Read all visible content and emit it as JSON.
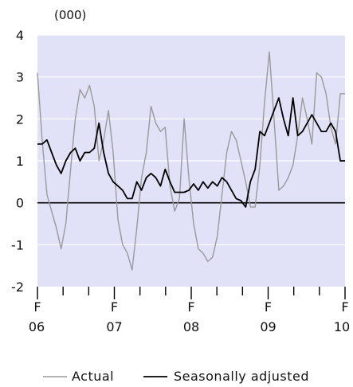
{
  "chart_data": {
    "type": "line",
    "unit_label": "(000)",
    "ylim": [
      -2,
      4
    ],
    "y_ticks": [
      "-2",
      "-1",
      "0",
      "1",
      "2",
      "3",
      "4"
    ],
    "x_ticks": [
      {
        "month": "F",
        "year": "06"
      },
      {
        "month": "F",
        "year": "07"
      },
      {
        "month": "F",
        "year": "08"
      },
      {
        "month": "F",
        "year": "09"
      },
      {
        "month": "F",
        "year": "10"
      }
    ],
    "x_period_start": "Feb 2006",
    "x_period_end": "Feb 2010",
    "grid": true,
    "background_color": "#e1e1f8",
    "zero_line": true,
    "legend_position": "bottom",
    "series": [
      {
        "name": "Actual",
        "color": "#9a9a9a",
        "values": [
          3.1,
          1.5,
          0.2,
          -0.2,
          -0.6,
          -1.1,
          -0.5,
          0.8,
          2.0,
          2.7,
          2.5,
          2.8,
          2.3,
          1.0,
          1.5,
          2.2,
          1.2,
          -0.4,
          -1.0,
          -1.2,
          -1.6,
          -0.6,
          0.6,
          1.2,
          2.3,
          1.9,
          1.7,
          1.8,
          0.4,
          -0.2,
          0.1,
          2.0,
          0.6,
          -0.5,
          -1.1,
          -1.2,
          -1.4,
          -1.3,
          -0.8,
          0.2,
          1.2,
          1.7,
          1.5,
          1.0,
          0.5,
          -0.1,
          -0.1,
          0.9,
          2.4,
          3.6,
          2.0,
          0.3,
          0.4,
          0.6,
          0.9,
          1.6,
          2.5,
          2.0,
          1.4,
          3.1,
          3.0,
          2.6,
          1.8,
          1.4,
          2.6,
          2.6
        ]
      },
      {
        "name": "Seasonally adjusted",
        "color": "#000000",
        "values": [
          1.4,
          1.4,
          1.5,
          1.2,
          0.9,
          0.7,
          1.0,
          1.2,
          1.3,
          1.0,
          1.2,
          1.2,
          1.3,
          1.9,
          1.2,
          0.7,
          0.5,
          0.4,
          0.3,
          0.1,
          0.1,
          0.5,
          0.3,
          0.6,
          0.7,
          0.6,
          0.4,
          0.8,
          0.5,
          0.25,
          0.25,
          0.25,
          0.3,
          0.45,
          0.3,
          0.5,
          0.35,
          0.5,
          0.4,
          0.6,
          0.5,
          0.3,
          0.1,
          0.05,
          -0.1,
          0.5,
          0.8,
          1.7,
          1.6,
          1.9,
          2.2,
          2.5,
          2.0,
          1.6,
          2.5,
          1.6,
          1.7,
          1.9,
          2.1,
          1.9,
          1.7,
          1.7,
          1.9,
          1.7,
          1.0,
          1.0
        ]
      }
    ]
  }
}
